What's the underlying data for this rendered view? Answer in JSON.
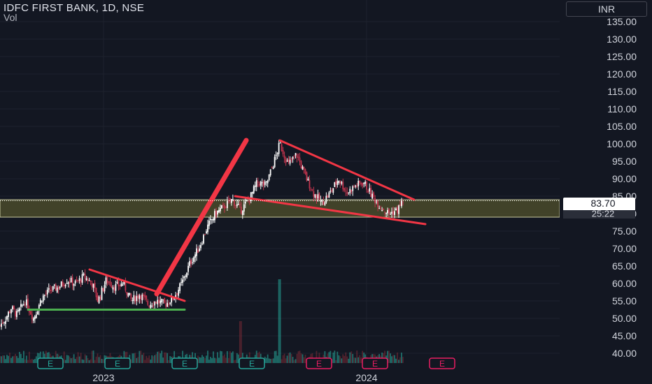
{
  "header": {
    "title": "IDFC FIRST BANK, 1D, NSE",
    "volume_label": "Vol",
    "currency": "INR"
  },
  "price_label": {
    "price": "83.70",
    "countdown": "25:22",
    "color": "#ffffff"
  },
  "colors": {
    "background": "#131722",
    "up_candle": "#ffffff",
    "down_candle": "#c2344d",
    "trendline": "#f23645",
    "support_line": "#4caf50",
    "zone_fill": "#4a4a2a",
    "earnings_badge": "#26a69a",
    "earnings_badge_future": "#e91e63"
  },
  "chart_data": {
    "type": "candlestick",
    "title": "IDFC FIRST BANK, 1D, NSE",
    "y_axis": {
      "ticks": [
        "135.00",
        "130.00",
        "125.00",
        "120.00",
        "115.00",
        "110.00",
        "105.00",
        "100.00",
        "95.00",
        "90.00",
        "85.00",
        "80.00",
        "75.00",
        "70.00",
        "65.00",
        "60.00",
        "55.00",
        "50.00",
        "45.00",
        "40.00"
      ],
      "range": [
        38,
        140
      ]
    },
    "x_axis": {
      "ticks": [
        "2023",
        "2024"
      ]
    },
    "last_price": 83.7,
    "series": [
      {
        "t": 0,
        "close": 48
      },
      {
        "t": 0.01,
        "close": 50
      },
      {
        "t": 0.02,
        "close": 53
      },
      {
        "t": 0.03,
        "close": 51
      },
      {
        "t": 0.045,
        "close": 55
      },
      {
        "t": 0.06,
        "close": 50
      },
      {
        "t": 0.075,
        "close": 56
      },
      {
        "t": 0.09,
        "close": 58
      },
      {
        "t": 0.105,
        "close": 59
      },
      {
        "t": 0.12,
        "close": 61
      },
      {
        "t": 0.135,
        "close": 60
      },
      {
        "t": 0.15,
        "close": 62
      },
      {
        "t": 0.165,
        "close": 60
      },
      {
        "t": 0.175,
        "close": 55
      },
      {
        "t": 0.19,
        "close": 61
      },
      {
        "t": 0.205,
        "close": 59
      },
      {
        "t": 0.22,
        "close": 60
      },
      {
        "t": 0.235,
        "close": 55
      },
      {
        "t": 0.25,
        "close": 57
      },
      {
        "t": 0.265,
        "close": 54
      },
      {
        "t": 0.28,
        "close": 55
      },
      {
        "t": 0.295,
        "close": 54
      },
      {
        "t": 0.31,
        "close": 56
      },
      {
        "t": 0.325,
        "close": 60
      },
      {
        "t": 0.34,
        "close": 66
      },
      {
        "t": 0.355,
        "close": 70
      },
      {
        "t": 0.37,
        "close": 76
      },
      {
        "t": 0.385,
        "close": 80
      },
      {
        "t": 0.4,
        "close": 82
      },
      {
        "t": 0.415,
        "close": 84
      },
      {
        "t": 0.43,
        "close": 81
      },
      {
        "t": 0.445,
        "close": 84
      },
      {
        "t": 0.46,
        "close": 89
      },
      {
        "t": 0.475,
        "close": 88
      },
      {
        "t": 0.49,
        "close": 95
      },
      {
        "t": 0.5,
        "close": 100
      },
      {
        "t": 0.515,
        "close": 94
      },
      {
        "t": 0.53,
        "close": 97
      },
      {
        "t": 0.545,
        "close": 91
      },
      {
        "t": 0.56,
        "close": 86
      },
      {
        "t": 0.575,
        "close": 83
      },
      {
        "t": 0.59,
        "close": 86
      },
      {
        "t": 0.605,
        "close": 90
      },
      {
        "t": 0.62,
        "close": 86
      },
      {
        "t": 0.635,
        "close": 88
      },
      {
        "t": 0.65,
        "close": 89
      },
      {
        "t": 0.665,
        "close": 85
      },
      {
        "t": 0.68,
        "close": 82
      },
      {
        "t": 0.695,
        "close": 80
      },
      {
        "t": 0.71,
        "close": 81
      },
      {
        "t": 0.72,
        "close": 83.7
      }
    ],
    "drawings": [
      {
        "type": "trendline",
        "name": "impulse-arrow",
        "from": [
          0.28,
          57
        ],
        "to": [
          0.44,
          101
        ]
      },
      {
        "type": "trendline",
        "name": "early-resistance",
        "from": [
          0.16,
          64
        ],
        "to": [
          0.33,
          55
        ]
      },
      {
        "type": "trendline",
        "name": "early-support",
        "from": [
          0.05,
          52.5
        ],
        "to": [
          0.33,
          52.5
        ]
      },
      {
        "type": "trendline",
        "name": "wedge-upper",
        "from": [
          0.5,
          101
        ],
        "to": [
          0.74,
          84
        ]
      },
      {
        "type": "trendline",
        "name": "wedge-lower",
        "from": [
          0.42,
          85
        ],
        "to": [
          0.76,
          77
        ]
      },
      {
        "type": "zone",
        "name": "support-zone",
        "from": 79,
        "to": 84
      }
    ],
    "events": [
      {
        "name": "earnings",
        "label": "E",
        "t": 0.09
      },
      {
        "name": "earnings",
        "label": "E",
        "t": 0.21
      },
      {
        "name": "earnings",
        "label": "E",
        "t": 0.33
      },
      {
        "name": "earnings",
        "label": "E",
        "t": 0.45
      },
      {
        "name": "earnings",
        "label": "E",
        "t": 0.57,
        "future": true
      },
      {
        "name": "earnings",
        "label": "E",
        "t": 0.67,
        "future": true
      },
      {
        "name": "earnings",
        "label": "E",
        "t": 0.79,
        "future": true
      }
    ]
  }
}
